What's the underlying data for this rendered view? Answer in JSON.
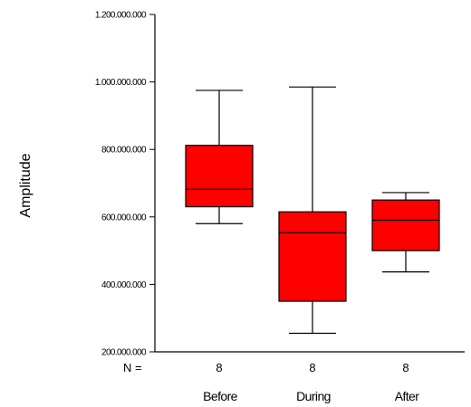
{
  "chart_data": {
    "type": "box",
    "title": "",
    "xlabel": "",
    "ylabel": "Amplitude",
    "ylim": [
      200000000,
      1200000000
    ],
    "yticks": [
      200000000,
      400000000,
      600000000,
      800000000,
      1000000000,
      1200000000
    ],
    "ytick_labels": [
      "200.000.000",
      "400.000.000",
      "600.000.000",
      "800.000.000",
      "1.000.000.000",
      "1.200.000.000"
    ],
    "n_label": "N =",
    "grid": false,
    "box_color": "#ff0000",
    "categories": [
      "Before",
      "During",
      "After"
    ],
    "n": [
      "8",
      "8",
      "8"
    ],
    "boxes": [
      {
        "category": "Before",
        "min": 580000000,
        "q1": 630000000,
        "median": 682000000,
        "q3": 812000000,
        "max": 975000000
      },
      {
        "category": "During",
        "min": 255000000,
        "q1": 350000000,
        "median": 553000000,
        "q3": 615000000,
        "max": 985000000
      },
      {
        "category": "After",
        "min": 437000000,
        "q1": 500000000,
        "median": 590000000,
        "q3": 650000000,
        "max": 672000000
      }
    ]
  }
}
